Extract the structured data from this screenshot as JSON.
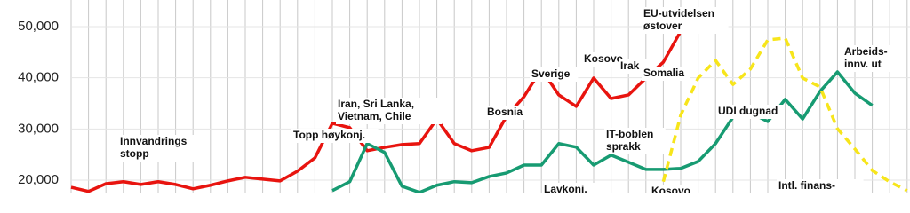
{
  "chart_data": {
    "type": "line",
    "categories": [
      null,
      null,
      null,
      null,
      null,
      null,
      null,
      null,
      null,
      null,
      null,
      null,
      null,
      null,
      null,
      null,
      null,
      null,
      null,
      null,
      null,
      null,
      null,
      null,
      null,
      null,
      null,
      null,
      null,
      null,
      null,
      null,
      null,
      null,
      null,
      null,
      null,
      null,
      null,
      null,
      null,
      null,
      null,
      null,
      null,
      null,
      null,
      null,
      null
    ],
    "series": [
      {
        "color": "#e8140f",
        "dashed": false,
        "values": [
          18600,
          17800,
          19300,
          19700,
          19150,
          19700,
          19150,
          18300,
          19000,
          19850,
          20550,
          20200,
          19850,
          21750,
          24350,
          31100,
          30250,
          25750,
          26400,
          26950,
          27150,
          31950,
          27150,
          25750,
          26400,
          32500,
          36300,
          41700,
          36650,
          34400,
          39950,
          35950,
          36650,
          39950,
          43050,
          49100,
          null,
          null,
          null,
          null,
          null,
          null,
          null,
          null,
          null,
          null,
          null,
          null,
          52600
        ]
      },
      {
        "color": "#179b72",
        "dashed": false,
        "values": [
          null,
          null,
          null,
          null,
          null,
          null,
          null,
          null,
          null,
          null,
          null,
          null,
          null,
          null,
          null,
          17950,
          19700,
          27150,
          25400,
          18800,
          17600,
          19000,
          19700,
          19500,
          20700,
          21400,
          22950,
          22950,
          27150,
          26450,
          22950,
          24900,
          23500,
          22100,
          22100,
          22300,
          23650,
          27150,
          32300,
          33200,
          31450,
          35800,
          31950,
          37350,
          41150,
          37000,
          34600,
          null,
          null
        ]
      },
      {
        "color": "#f7e51b",
        "dashed": true,
        "values": [
          null,
          null,
          null,
          null,
          null,
          null,
          null,
          null,
          null,
          null,
          null,
          null,
          null,
          null,
          null,
          null,
          null,
          null,
          null,
          null,
          null,
          null,
          null,
          null,
          null,
          null,
          null,
          null,
          null,
          null,
          null,
          null,
          null,
          null,
          19700,
          32700,
          39950,
          43400,
          38700,
          41700,
          47400,
          47750,
          39950,
          38200,
          30050,
          26100,
          21900,
          19650,
          17950
        ]
      }
    ],
    "ylim": [
      17570,
      55200
    ],
    "yticks": [
      {
        "value": 20000,
        "label": "20,000"
      },
      {
        "value": 30000,
        "label": "30,000"
      },
      {
        "value": 40000,
        "label": "40,000"
      },
      {
        "value": 50000,
        "label": "50,000"
      }
    ],
    "grid": true,
    "annotations": [
      [
        "Innvandrings",
        "stopp"
      ],
      [
        "Topp høykonj."
      ],
      [
        "Iran, Sri Lanka,",
        "Vietnam, Chile"
      ],
      [
        "Bosnia"
      ],
      [
        "Sverige"
      ],
      [
        "Kosovo"
      ],
      [
        "Irak"
      ],
      [
        "Somalia"
      ],
      [
        "EU-utvidelsen",
        "østover"
      ],
      [
        "IT-boblen",
        "sprakk"
      ],
      [
        "UDI dugnad"
      ],
      [
        "Arbeids-",
        "innv. ut"
      ],
      [
        "Lavkonj."
      ],
      [
        "Kosovo"
      ],
      [
        "Intl. finans-"
      ]
    ]
  }
}
